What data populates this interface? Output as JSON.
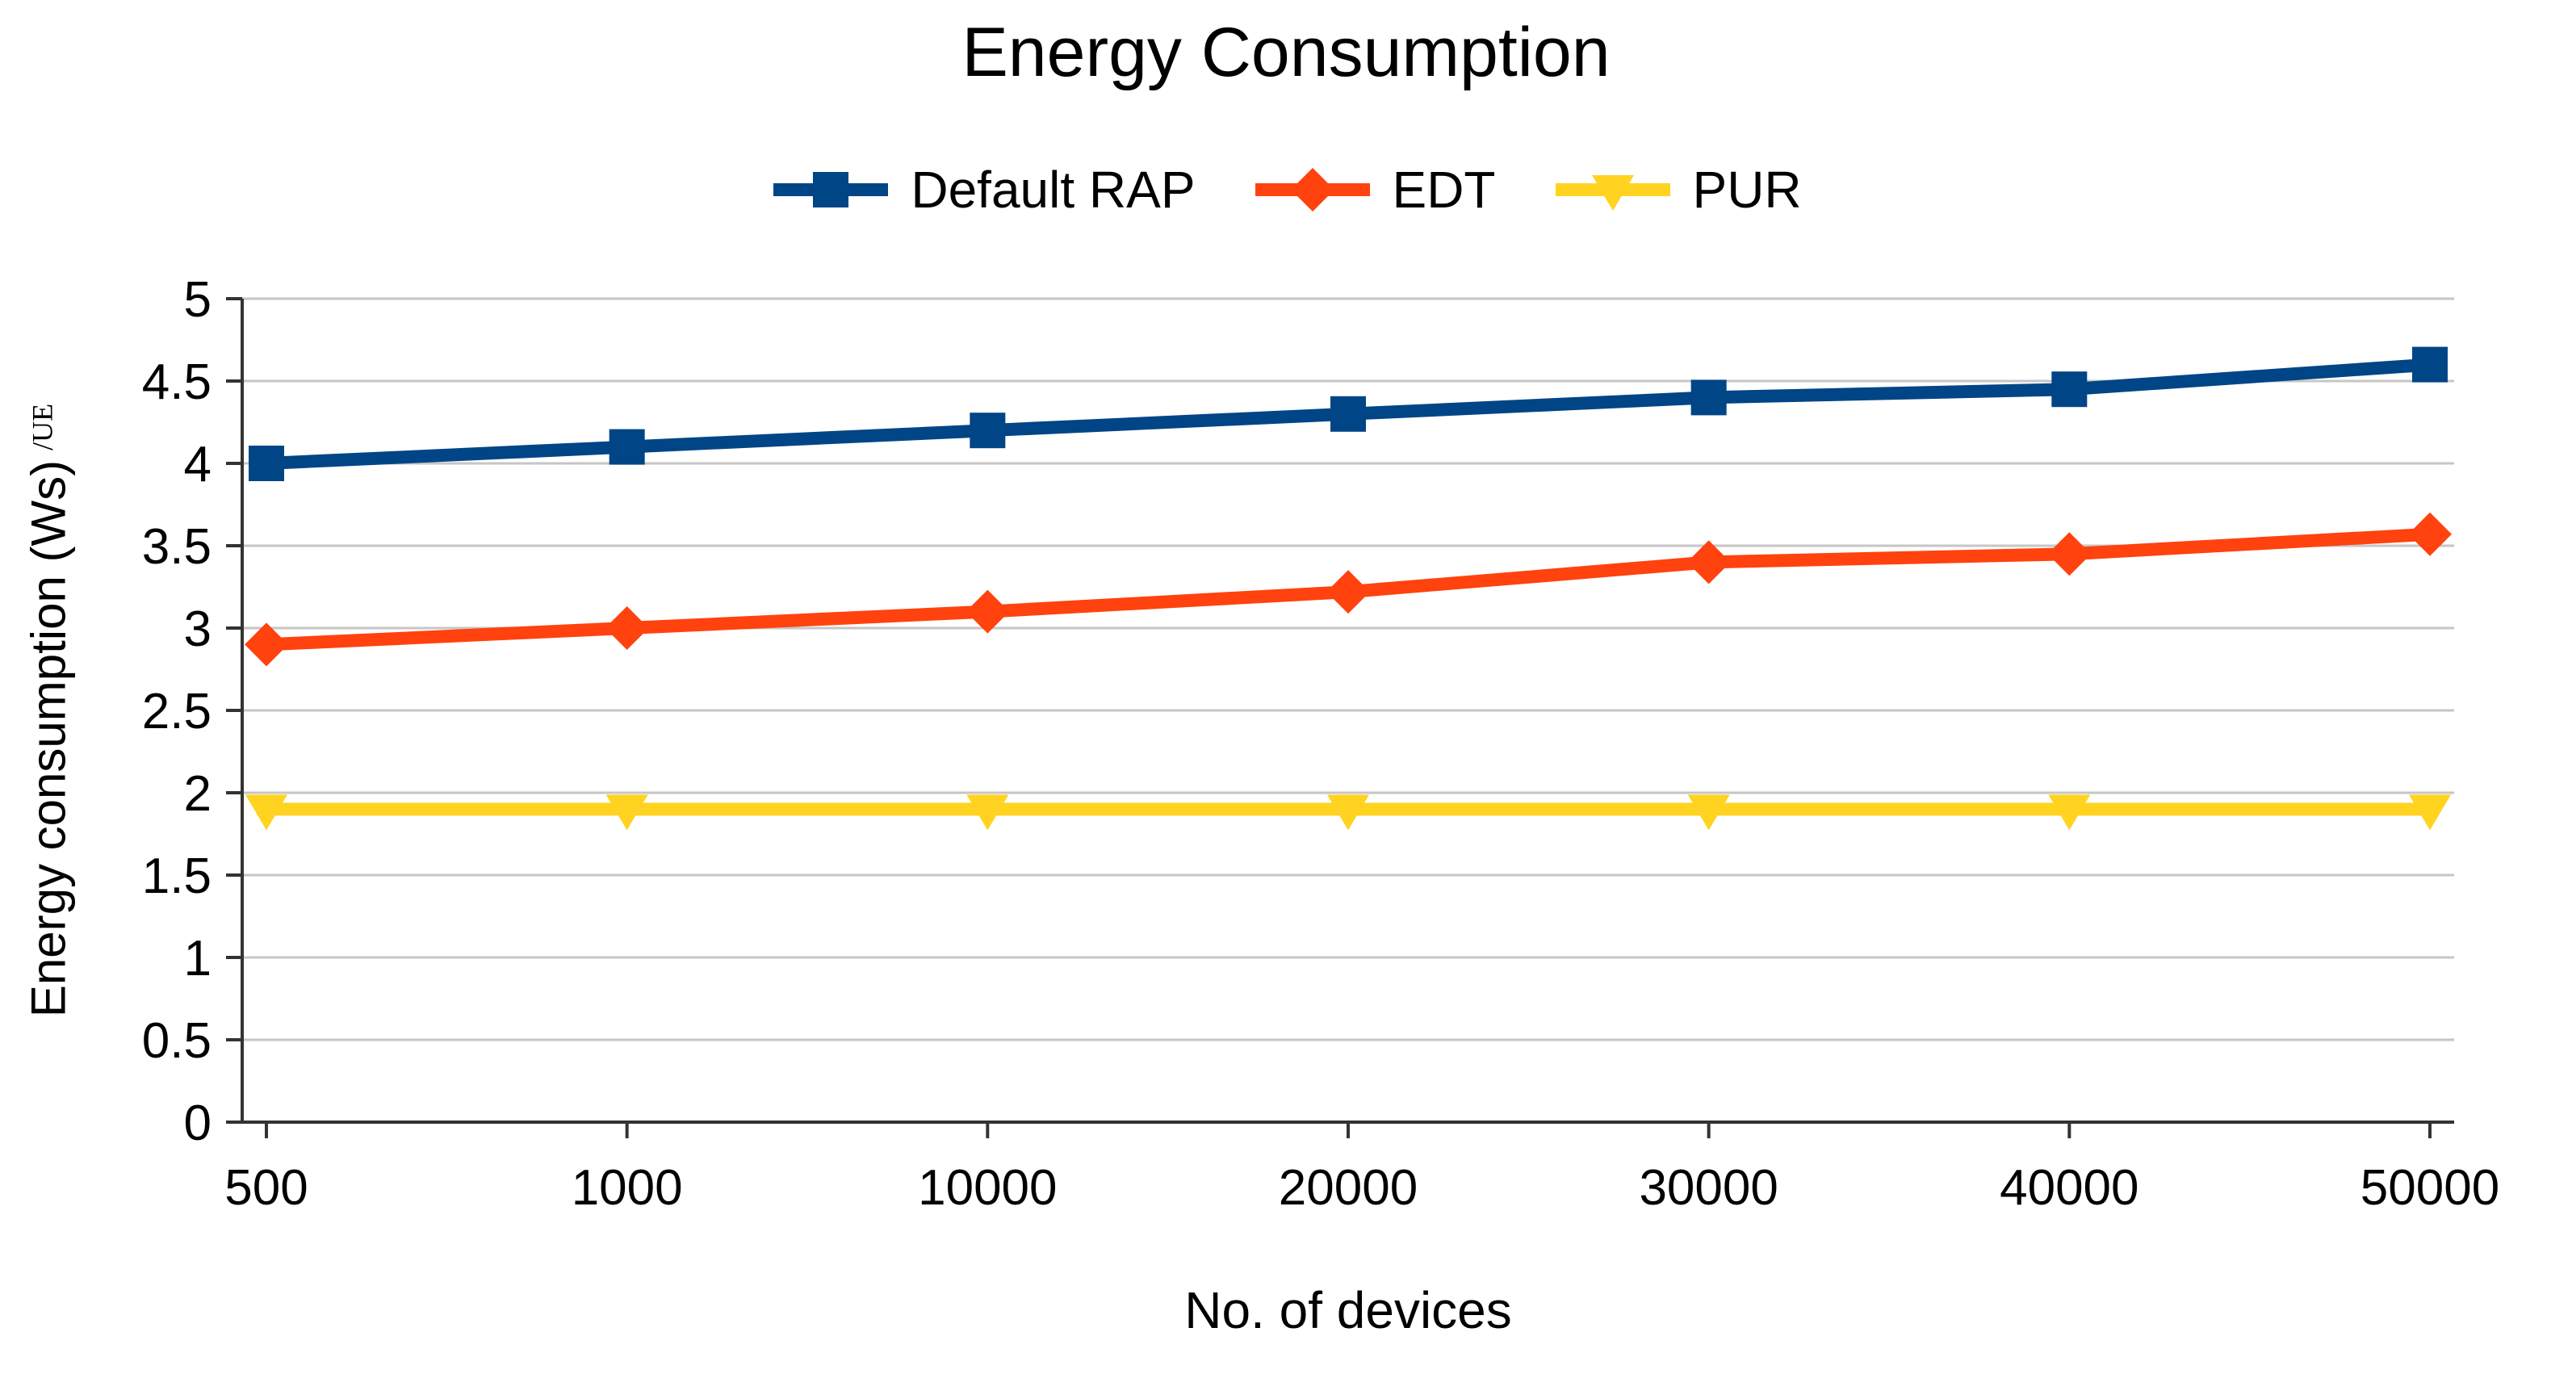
{
  "chart_data": {
    "type": "line",
    "title": "Energy Consumption",
    "xlabel": "No. of devices",
    "ylabel": "Energy consumption (Ws)",
    "ylabel_suffix": "/UE",
    "categories": [
      "500",
      "1000",
      "10000",
      "20000",
      "30000",
      "40000",
      "50000"
    ],
    "ylim": [
      0,
      5
    ],
    "y_tick_step": 0.5,
    "y_ticks": [
      "0",
      "0.5",
      "1",
      "1.5",
      "2",
      "2.5",
      "3",
      "3.5",
      "4",
      "4.5",
      "5"
    ],
    "grid": "horizontal",
    "legend_position": "top",
    "colors": {
      "axis": "#333333",
      "gridline": "#c6c6c6",
      "text": "#000000"
    },
    "series": [
      {
        "name": "Default RAP",
        "color": "#004586",
        "marker": "square",
        "values": [
          4.0,
          4.1,
          4.2,
          4.3,
          4.4,
          4.45,
          4.6
        ]
      },
      {
        "name": "EDT",
        "color": "#FF420E",
        "marker": "diamond",
        "values": [
          2.9,
          3.0,
          3.1,
          3.22,
          3.4,
          3.45,
          3.57
        ]
      },
      {
        "name": "PUR",
        "color": "#FFD320",
        "marker": "triangle-down",
        "values": [
          1.9,
          1.9,
          1.9,
          1.9,
          1.9,
          1.9,
          1.9
        ]
      }
    ]
  }
}
